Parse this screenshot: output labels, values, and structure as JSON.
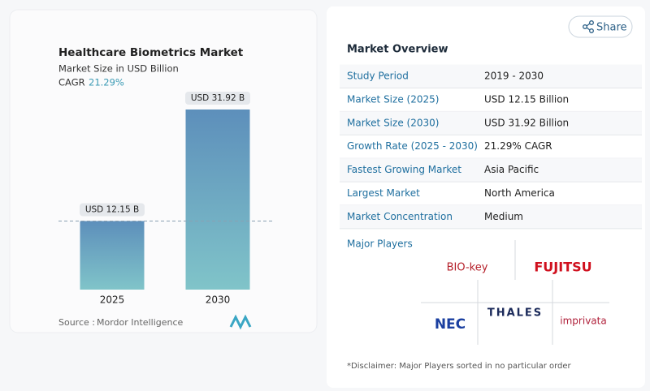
{
  "chart_data": {
    "type": "bar",
    "title": "Healthcare Biometrics Market",
    "subtitle": "Market Size in USD Billion",
    "cagr_label": "CAGR",
    "cagr_value": "21.29%",
    "categories": [
      "2025",
      "2030"
    ],
    "values": [
      12.15,
      31.92
    ],
    "value_labels": [
      "USD 12.15 B",
      "USD 31.92 B"
    ],
    "source_label": "Source :",
    "source": "Mordor Intelligence"
  },
  "share": "Share",
  "overview": {
    "title": "Market Overview",
    "rows": [
      [
        "Study Period",
        "2019 - 2030"
      ],
      [
        "Market Size (2025)",
        "USD 12.15 Billion"
      ],
      [
        "Market Size (2030)",
        "USD 31.92 Billion"
      ],
      [
        "Growth Rate (2025 - 2030)",
        "21.29% CAGR"
      ],
      [
        "Fastest Growing Market",
        "Asia Pacific"
      ],
      [
        "Largest Market",
        "North America"
      ],
      [
        "Market Concentration",
        "Medium"
      ]
    ],
    "players_title": "Major Players",
    "players": [
      "BIO-key",
      "FUJITSU",
      "NEC",
      "THALES",
      "imprivata"
    ],
    "disclaimer": "*Disclaimer: Major Players sorted in no particular order"
  }
}
